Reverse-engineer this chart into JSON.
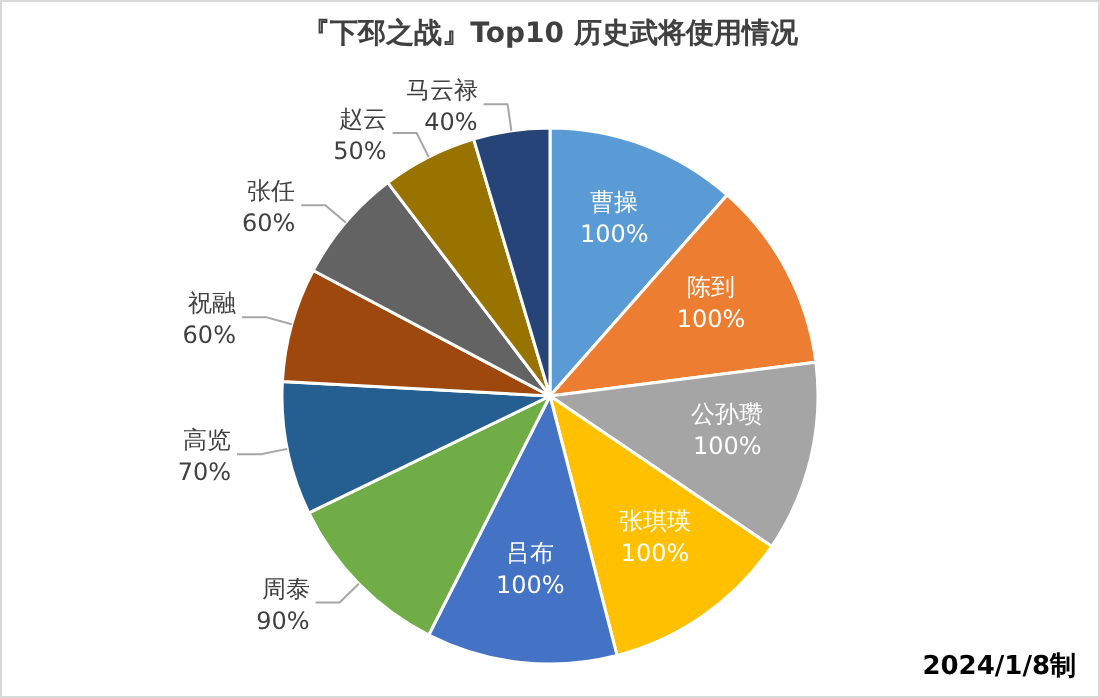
{
  "chart_data": {
    "type": "pie",
    "title": "『下邳之战』Top10 历史武将使用情况",
    "categories": [
      "曹操",
      "陈到",
      "公孙瓒",
      "张琪瑛",
      "吕布",
      "周泰",
      "高览",
      "祝融",
      "张任",
      "赵云",
      "马云禄"
    ],
    "values": [
      100,
      100,
      100,
      100,
      100,
      90,
      70,
      60,
      60,
      50,
      40
    ],
    "value_labels": [
      "100%",
      "100%",
      "100%",
      "100%",
      "100%",
      "90%",
      "70%",
      "60%",
      "60%",
      "50%",
      "40%"
    ],
    "colors": [
      "#5b9bd5",
      "#ed7d31",
      "#a5a5a5",
      "#ffc000",
      "#4472c4",
      "#70ad47",
      "#255e91",
      "#9e480e",
      "#636363",
      "#997300",
      "#264478"
    ],
    "annotations": [
      "2024/1/8制"
    ]
  }
}
